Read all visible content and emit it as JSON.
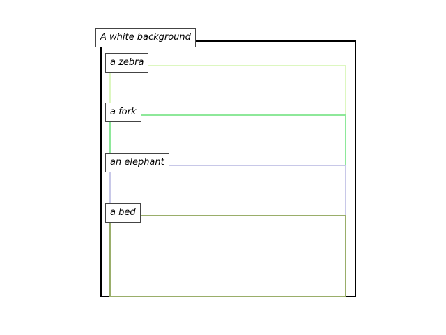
{
  "regions": [
    {
      "key": "background",
      "label": "A white background",
      "color": "#000000"
    },
    {
      "key": "zebra",
      "label": "a zebra",
      "color": "#ddf7c0"
    },
    {
      "key": "fork",
      "label": "a fork",
      "color": "#8ee89a"
    },
    {
      "key": "elephant",
      "label": "an elephant",
      "color": "#c8c8e8"
    },
    {
      "key": "bed",
      "label": "a bed",
      "color": "#9aae6a"
    }
  ]
}
